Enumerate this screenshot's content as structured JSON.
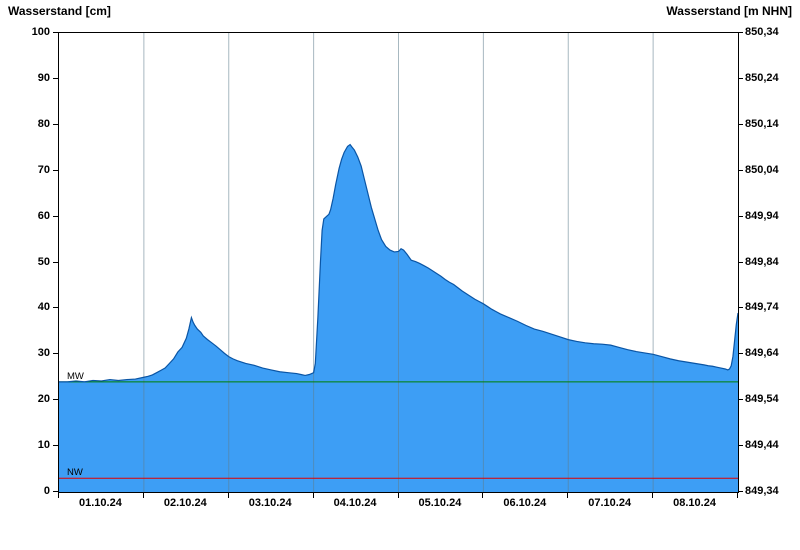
{
  "titles": {
    "left": "Wasserstand [cm]",
    "right": "Wasserstand [m NHN]"
  },
  "chart_data": {
    "type": "area",
    "title": "",
    "x_axis": {
      "labels": [
        "01.10.24",
        "02.10.24",
        "03.10.24",
        "04.10.24",
        "05.10.24",
        "06.10.24",
        "07.10.24",
        "08.10.24"
      ],
      "days": 8,
      "note": "vertical gridlines at each day boundary, date labels centered in each day segment"
    },
    "y_axis_left": {
      "label": "Wasserstand [cm]",
      "min": 0,
      "max": 100,
      "tick_step": 10,
      "ticks": [
        100,
        90,
        80,
        70,
        60,
        50,
        40,
        30,
        20,
        10,
        0
      ]
    },
    "y_axis_right": {
      "label": "Wasserstand [m NHN]",
      "ticks": [
        "850,34",
        "850,24",
        "850,14",
        "850,04",
        "849,94",
        "849,84",
        "849,74",
        "849,64",
        "849,54",
        "849,44",
        "849,34"
      ]
    },
    "reference_lines": [
      {
        "name": "MW",
        "value_cm": 24,
        "color": "#008000"
      },
      {
        "name": "NW",
        "value_cm": 3,
        "color": "#e00000"
      }
    ],
    "series": [
      {
        "name": "Wasserstand",
        "unit": "cm",
        "x_unit": "days since 01.10.24 00:00",
        "points": [
          [
            0,
            24
          ],
          [
            0.1,
            24
          ],
          [
            0.2,
            24.2
          ],
          [
            0.3,
            24
          ],
          [
            0.4,
            24.3
          ],
          [
            0.5,
            24.2
          ],
          [
            0.6,
            24.5
          ],
          [
            0.7,
            24.3
          ],
          [
            0.8,
            24.5
          ],
          [
            0.9,
            24.6
          ],
          [
            1.0,
            25
          ],
          [
            1.05,
            25.2
          ],
          [
            1.1,
            25.5
          ],
          [
            1.15,
            26
          ],
          [
            1.2,
            26.5
          ],
          [
            1.25,
            27
          ],
          [
            1.3,
            28
          ],
          [
            1.35,
            29
          ],
          [
            1.4,
            30.5
          ],
          [
            1.45,
            31.5
          ],
          [
            1.5,
            33.5
          ],
          [
            1.53,
            35.5
          ],
          [
            1.56,
            38
          ],
          [
            1.58,
            37
          ],
          [
            1.6,
            36.3
          ],
          [
            1.63,
            35.5
          ],
          [
            1.67,
            34.8
          ],
          [
            1.7,
            34
          ],
          [
            1.75,
            33.2
          ],
          [
            1.8,
            32.5
          ],
          [
            1.85,
            31.8
          ],
          [
            1.9,
            31
          ],
          [
            1.95,
            30.2
          ],
          [
            2.0,
            29.5
          ],
          [
            2.05,
            29
          ],
          [
            2.1,
            28.6
          ],
          [
            2.2,
            28
          ],
          [
            2.3,
            27.6
          ],
          [
            2.4,
            27
          ],
          [
            2.5,
            26.6
          ],
          [
            2.6,
            26.2
          ],
          [
            2.7,
            26
          ],
          [
            2.8,
            25.8
          ],
          [
            2.85,
            25.6
          ],
          [
            2.9,
            25.4
          ],
          [
            2.95,
            25.6
          ],
          [
            3.0,
            26
          ],
          [
            3.02,
            28
          ],
          [
            3.05,
            38
          ],
          [
            3.08,
            50
          ],
          [
            3.1,
            57
          ],
          [
            3.12,
            59.5
          ],
          [
            3.15,
            60
          ],
          [
            3.18,
            60.5
          ],
          [
            3.2,
            61.5
          ],
          [
            3.23,
            64
          ],
          [
            3.26,
            67
          ],
          [
            3.3,
            70.5
          ],
          [
            3.33,
            72.5
          ],
          [
            3.36,
            74
          ],
          [
            3.4,
            75.3
          ],
          [
            3.43,
            75.7
          ],
          [
            3.45,
            75.2
          ],
          [
            3.48,
            74.5
          ],
          [
            3.52,
            73
          ],
          [
            3.56,
            71
          ],
          [
            3.6,
            68
          ],
          [
            3.64,
            65
          ],
          [
            3.68,
            62
          ],
          [
            3.72,
            59.5
          ],
          [
            3.76,
            57
          ],
          [
            3.8,
            55
          ],
          [
            3.85,
            53.5
          ],
          [
            3.9,
            52.7
          ],
          [
            3.95,
            52.3
          ],
          [
            4.0,
            52.4
          ],
          [
            4.03,
            53
          ],
          [
            4.06,
            52.7
          ],
          [
            4.1,
            51.8
          ],
          [
            4.15,
            50.5
          ],
          [
            4.2,
            50.2
          ],
          [
            4.25,
            49.8
          ],
          [
            4.3,
            49.3
          ],
          [
            4.35,
            48.8
          ],
          [
            4.4,
            48.2
          ],
          [
            4.45,
            47.6
          ],
          [
            4.5,
            47
          ],
          [
            4.55,
            46.3
          ],
          [
            4.6,
            45.7
          ],
          [
            4.65,
            45.2
          ],
          [
            4.7,
            44.5
          ],
          [
            4.75,
            43.8
          ],
          [
            4.8,
            43.2
          ],
          [
            4.85,
            42.6
          ],
          [
            4.9,
            42
          ],
          [
            4.95,
            41.5
          ],
          [
            5.0,
            41
          ],
          [
            5.05,
            40.4
          ],
          [
            5.1,
            39.8
          ],
          [
            5.15,
            39.3
          ],
          [
            5.2,
            38.8
          ],
          [
            5.3,
            38
          ],
          [
            5.4,
            37.2
          ],
          [
            5.5,
            36.3
          ],
          [
            5.6,
            35.5
          ],
          [
            5.7,
            35
          ],
          [
            5.8,
            34.4
          ],
          [
            5.9,
            33.8
          ],
          [
            6.0,
            33.2
          ],
          [
            6.1,
            32.8
          ],
          [
            6.2,
            32.5
          ],
          [
            6.3,
            32.3
          ],
          [
            6.4,
            32.2
          ],
          [
            6.5,
            32
          ],
          [
            6.6,
            31.5
          ],
          [
            6.7,
            31
          ],
          [
            6.8,
            30.6
          ],
          [
            6.9,
            30.3
          ],
          [
            7.0,
            30
          ],
          [
            7.1,
            29.5
          ],
          [
            7.2,
            29
          ],
          [
            7.3,
            28.6
          ],
          [
            7.4,
            28.3
          ],
          [
            7.5,
            28
          ],
          [
            7.6,
            27.7
          ],
          [
            7.65,
            27.5
          ],
          [
            7.7,
            27.4
          ],
          [
            7.75,
            27.2
          ],
          [
            7.8,
            27
          ],
          [
            7.85,
            26.8
          ],
          [
            7.88,
            26.6
          ],
          [
            7.9,
            26.8
          ],
          [
            7.92,
            27.5
          ],
          [
            7.94,
            29.5
          ],
          [
            7.96,
            33
          ],
          [
            7.98,
            36.5
          ],
          [
            8.0,
            39
          ]
        ]
      }
    ],
    "colors": {
      "fill": "#3d9ef5",
      "line": "#0a55a5",
      "grid": "#5f7d8c",
      "axis": "#000000"
    },
    "legend": "none",
    "grid": "vertical-only"
  }
}
